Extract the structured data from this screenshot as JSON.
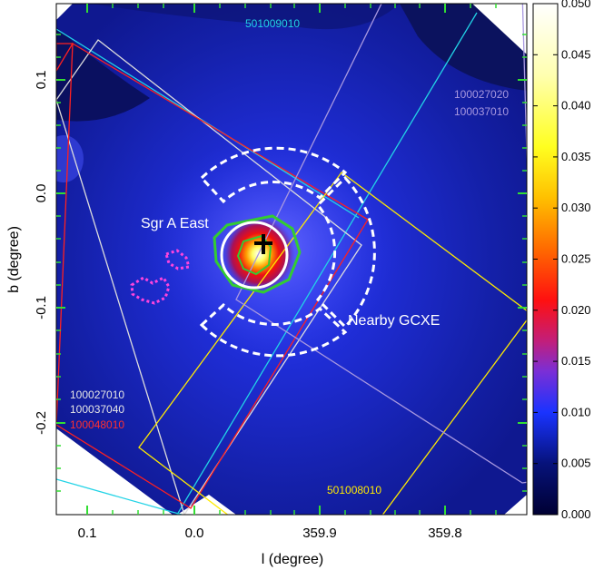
{
  "axes": {
    "xlabel": "l (degree)",
    "ylabel": "b (degree)",
    "x_tick_labels": [
      "0.1",
      "0.0",
      "359.9",
      "359.8"
    ],
    "y_tick_labels": [
      "0.1",
      "0.0",
      "-0.1",
      "-0.2"
    ]
  },
  "colorbar": {
    "min": 0.0,
    "max": 0.05,
    "tick_labels": [
      "0.000",
      "0.005",
      "0.010",
      "0.015",
      "0.020",
      "0.025",
      "0.030",
      "0.035",
      "0.040",
      "0.045",
      "0.050"
    ]
  },
  "annotations": {
    "sgr_a_east": "Sgr A East",
    "nearby_gcxe": "Nearby GCXE"
  },
  "observation_ids": {
    "top": "501009010",
    "bottom": "501008010",
    "right_1": "100027020",
    "right_2": "100037010",
    "left_1": "100027010",
    "left_2": "100037040",
    "left_3": "100048010"
  },
  "colors": {
    "cyan": "#22d3e6",
    "purple": "#a898e0",
    "white": "#dcdcdc",
    "red": "#ff2020",
    "yellow": "#ffea00",
    "magenta": "#ff44dd",
    "green": "#33cc33"
  }
}
